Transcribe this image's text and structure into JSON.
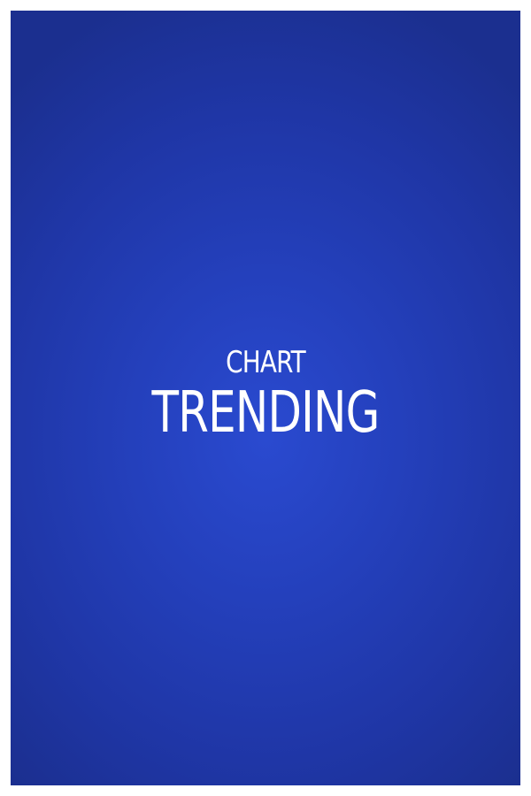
{
  "poster": {
    "small_title": "CHART",
    "big_title": "TRENDING",
    "background_color": "#2440bc",
    "text_color": "#ffffff"
  }
}
